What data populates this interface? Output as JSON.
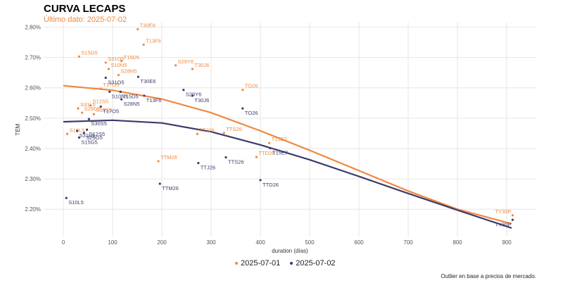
{
  "title": "CURVA LECAPS",
  "subtitle": "Último dato: 2025-07-02",
  "caption": "Outlier en base a precios de mercado.",
  "colors": {
    "series1": "#f0883e",
    "series2": "#3b3b6b",
    "grid": "#e6e6e6",
    "axis_text": "#555555"
  },
  "chart_data": {
    "type": "scatter",
    "xlabel": "duration (días)",
    "ylabel": "TEM",
    "xlim": [
      -40,
      960
    ],
    "ylim": [
      2.11,
      2.815
    ],
    "x_ticks": [
      0,
      100,
      200,
      300,
      400,
      500,
      600,
      700,
      800,
      900
    ],
    "y_ticks": [
      2.2,
      2.3,
      2.4,
      2.5,
      2.6,
      2.7,
      2.8
    ],
    "y_tick_labels": [
      "2.20%",
      "2.30%",
      "2.40%",
      "2.50%",
      "2.60%",
      "2.70%",
      "2.80%"
    ],
    "grid": true,
    "legend_position": "bottom",
    "series": [
      {
        "name": "2025-07-01",
        "color": "#f0883e",
        "curve": [
          [
            0,
            2.607
          ],
          [
            100,
            2.592
          ],
          [
            200,
            2.563
          ],
          [
            300,
            2.518
          ],
          [
            400,
            2.458
          ],
          [
            500,
            2.394
          ],
          [
            600,
            2.327
          ],
          [
            700,
            2.26
          ],
          [
            800,
            2.2
          ],
          [
            910,
            2.152
          ]
        ],
        "points": [
          {
            "label": "S10L5",
            "x": 8,
            "y": 2.448
          },
          {
            "label": "S31L5",
            "x": 30,
            "y": 2.532
          },
          {
            "label": "S29G5",
            "x": 38,
            "y": 2.518
          },
          {
            "label": "S15G5",
            "x": 32,
            "y": 2.703
          },
          {
            "label": "S12S5",
            "x": 55,
            "y": 2.542
          },
          {
            "label": "S30S5",
            "x": 62,
            "y": 2.513
          },
          {
            "label": "T17O5",
            "x": 76,
            "y": 2.597
          },
          {
            "label": "S31O5",
            "x": 86,
            "y": 2.683
          },
          {
            "label": "S10N5",
            "x": 92,
            "y": 2.662
          },
          {
            "label": "S28N5",
            "x": 112,
            "y": 2.642
          },
          {
            "label": "T15D5",
            "x": 118,
            "y": 2.688
          },
          {
            "label": "T30E6",
            "x": 151,
            "y": 2.793
          },
          {
            "label": "T13F6",
            "x": 163,
            "y": 2.742
          },
          {
            "label": "S29Y6",
            "x": 228,
            "y": 2.674
          },
          {
            "label": "T30J6",
            "x": 262,
            "y": 2.662
          },
          {
            "label": "TTM26",
            "x": 193,
            "y": 2.358
          },
          {
            "label": "TTJ26",
            "x": 272,
            "y": 2.448
          },
          {
            "label": "TTS26",
            "x": 326,
            "y": 2.451
          },
          {
            "label": "TO26",
            "x": 364,
            "y": 2.593
          },
          {
            "label": "TTD26",
            "x": 392,
            "y": 2.372
          },
          {
            "label": "T15E7",
            "x": 418,
            "y": 2.418
          },
          {
            "label": "TY30P",
            "x": 912,
            "y": 2.18
          }
        ]
      },
      {
        "name": "2025-07-02",
        "color": "#3b3b6b",
        "curve": [
          [
            0,
            2.488
          ],
          [
            100,
            2.493
          ],
          [
            200,
            2.484
          ],
          [
            300,
            2.455
          ],
          [
            400,
            2.412
          ],
          [
            500,
            2.363
          ],
          [
            600,
            2.308
          ],
          [
            700,
            2.252
          ],
          [
            800,
            2.197
          ],
          [
            910,
            2.138
          ]
        ],
        "points": [
          {
            "label": "S10L5",
            "x": 6,
            "y": 2.237
          },
          {
            "label": "S31L5",
            "x": 28,
            "y": 2.458
          },
          {
            "label": "S15G5",
            "x": 32,
            "y": 2.436
          },
          {
            "label": "S29G5",
            "x": 42,
            "y": 2.451
          },
          {
            "label": "S12S5",
            "x": 48,
            "y": 2.462
          },
          {
            "label": "S30S5",
            "x": 52,
            "y": 2.497
          },
          {
            "label": "T17O5",
            "x": 76,
            "y": 2.538
          },
          {
            "label": "S10N5",
            "x": 94,
            "y": 2.587
          },
          {
            "label": "S31O5",
            "x": 86,
            "y": 2.633
          },
          {
            "label": "S28N5",
            "x": 118,
            "y": 2.562
          },
          {
            "label": "T15D5",
            "x": 116,
            "y": 2.587
          },
          {
            "label": "T30E6",
            "x": 152,
            "y": 2.636
          },
          {
            "label": "T13F6",
            "x": 164,
            "y": 2.574
          },
          {
            "label": "S29Y6",
            "x": 244,
            "y": 2.593
          },
          {
            "label": "T30J6",
            "x": 262,
            "y": 2.574
          },
          {
            "label": "TO26",
            "x": 364,
            "y": 2.532
          },
          {
            "label": "T15E7",
            "x": 420,
            "y": 2.401
          },
          {
            "label": "TTJ26",
            "x": 274,
            "y": 2.352
          },
          {
            "label": "TTS26",
            "x": 330,
            "y": 2.371
          },
          {
            "label": "TTM26",
            "x": 196,
            "y": 2.284
          },
          {
            "label": "TTD26",
            "x": 400,
            "y": 2.296
          },
          {
            "label": "TY30P",
            "x": 912,
            "y": 2.165
          }
        ]
      }
    ]
  }
}
